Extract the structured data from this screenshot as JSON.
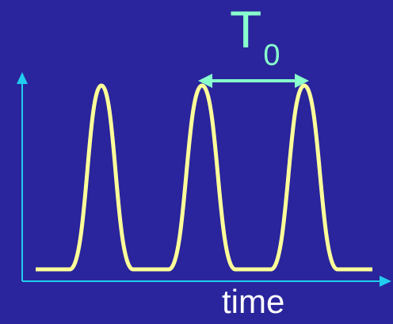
{
  "labels": {
    "period_symbol": "T",
    "period_subscript": "0",
    "x_axis": "time"
  },
  "colors": {
    "background": "#2a259c",
    "axis": "#22ccee",
    "pulse": "#ffff99",
    "period_marker": "#88ffcc",
    "axis_label": "#ffffff"
  },
  "pulses": {
    "count": 3
  }
}
